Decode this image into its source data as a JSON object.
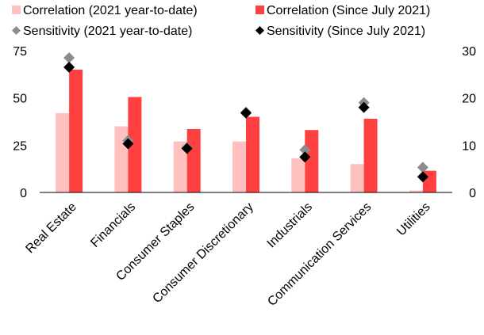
{
  "chart_data": {
    "type": "bar",
    "categories": [
      "Real Estate",
      "Financials",
      "Consumer Staples",
      "Consumer Discretionary",
      "Industrials",
      "Communication Services",
      "Utilities"
    ],
    "series": [
      {
        "name": "Correlation (2021 year-to-date)",
        "kind": "bar",
        "axis": "left",
        "color": "#ffc0c0",
        "values": [
          42,
          35,
          27,
          27,
          18,
          15,
          1
        ]
      },
      {
        "name": "Correlation (Since July 2021)",
        "kind": "bar",
        "axis": "left",
        "color": "#ff4040",
        "values": [
          65,
          50.5,
          33.5,
          40,
          33,
          39,
          11.5
        ]
      },
      {
        "name": "Sensitivity (2021 year-to-date)",
        "kind": "marker",
        "axis": "right",
        "color": "#8c8c8c",
        "values": [
          28.5,
          11,
          9.5,
          17,
          9,
          19,
          5.3
        ]
      },
      {
        "name": "Sensitivity (Since July 2021)",
        "kind": "marker",
        "axis": "right",
        "color": "#000000",
        "values": [
          26.5,
          10.3,
          9.3,
          16.8,
          7.5,
          18,
          3.3
        ]
      }
    ],
    "y_left": {
      "min": 0,
      "max": 75,
      "ticks": [
        0,
        25,
        50,
        75
      ]
    },
    "y_right": {
      "min": 0,
      "max": 30,
      "ticks": [
        0,
        10,
        20,
        30
      ]
    },
    "legend_position": "top",
    "grid": false
  }
}
